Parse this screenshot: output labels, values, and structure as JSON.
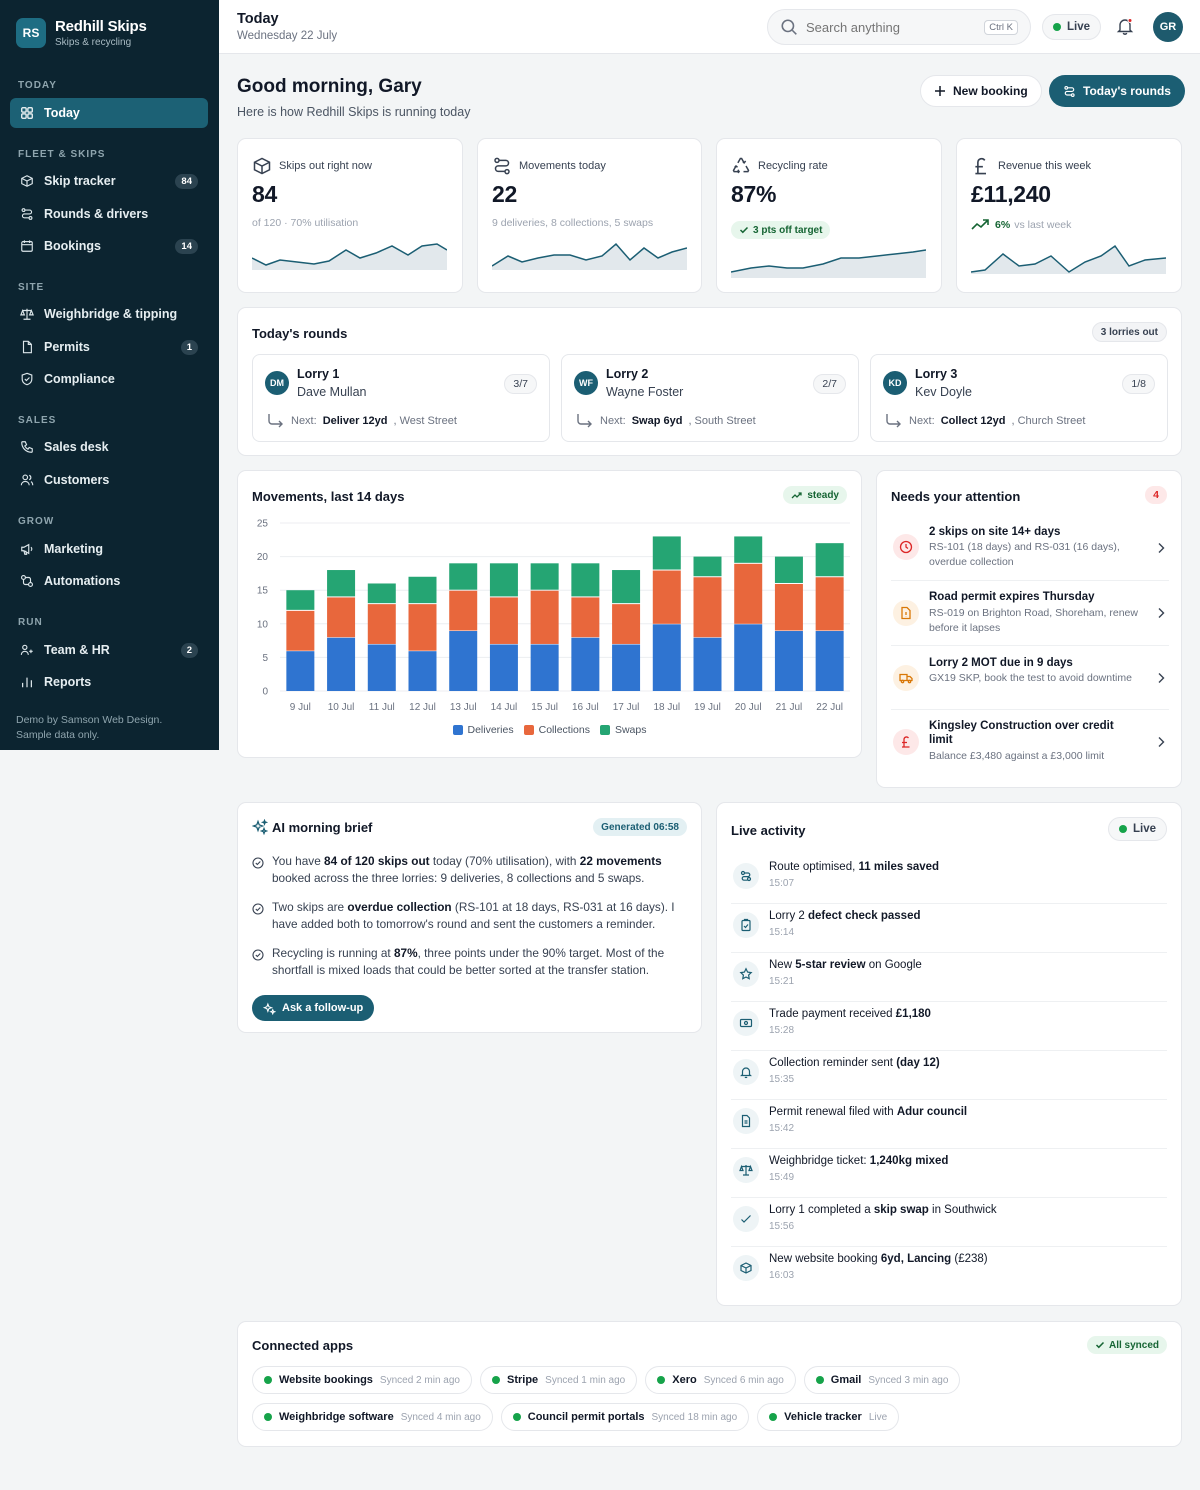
{
  "brand": {
    "initials": "RS",
    "name": "Redhill Skips",
    "sub": "Skips & recycling"
  },
  "sidebar": {
    "sections": [
      {
        "title": "TODAY",
        "items": [
          {
            "label": "Today",
            "icon": "grid-icon",
            "active": true
          }
        ]
      },
      {
        "title": "FLEET & SKIPS",
        "items": [
          {
            "label": "Skip tracker",
            "icon": "box-icon",
            "count": "84"
          },
          {
            "label": "Rounds & drivers",
            "icon": "route-icon"
          },
          {
            "label": "Bookings",
            "icon": "calendar-icon",
            "count": "14"
          }
        ]
      },
      {
        "title": "SITE",
        "items": [
          {
            "label": "Weighbridge & tipping",
            "icon": "scale-icon"
          },
          {
            "label": "Permits",
            "icon": "document-icon",
            "count": "1"
          },
          {
            "label": "Compliance",
            "icon": "shield-icon"
          }
        ]
      },
      {
        "title": "SALES",
        "items": [
          {
            "label": "Sales desk",
            "icon": "phone-icon"
          },
          {
            "label": "Customers",
            "icon": "users-icon"
          }
        ]
      },
      {
        "title": "GROW",
        "items": [
          {
            "label": "Marketing",
            "icon": "megaphone-icon"
          },
          {
            "label": "Automations",
            "icon": "automation-icon"
          }
        ]
      },
      {
        "title": "RUN",
        "items": [
          {
            "label": "Team & HR",
            "icon": "team-icon",
            "count": "2"
          },
          {
            "label": "Reports",
            "icon": "bar-chart-icon"
          }
        ]
      }
    ],
    "footer_line1": "Demo by Samson Web Design.",
    "footer_line2": "Sample data only."
  },
  "topbar": {
    "title": "Today",
    "date": "Wednesday 22 July",
    "search_placeholder": "Search anything",
    "shortcut": "Ctrl K",
    "live_label": "Live",
    "avatar": "GR"
  },
  "greeting": {
    "title": "Good morning, Gary",
    "subtitle": "Here is how Redhill Skips is running today",
    "new_booking": "New booking",
    "todays_rounds": "Today's rounds"
  },
  "kpis": [
    {
      "label": "Skips out right now",
      "value": "84",
      "sub": "of 120 · 70% utilisation",
      "icon": "box-icon"
    },
    {
      "label": "Movements today",
      "value": "22",
      "sub": "9 deliveries, 8 collections, 5 swaps",
      "icon": "route-icon"
    },
    {
      "label": "Recycling rate",
      "value": "87%",
      "badge": "3 pts off target",
      "icon": "recycle-icon"
    },
    {
      "label": "Revenue this week",
      "value": "£11,240",
      "trend_value": "6%",
      "trend_label": "vs last week",
      "icon": "pound-icon"
    }
  ],
  "rounds": {
    "title": "Today's rounds",
    "badge": "3 lorries out",
    "lorries": [
      {
        "initials": "DM",
        "name": "Lorry 1",
        "driver": "Dave Mullan",
        "progress": "3/7",
        "next_label": "Next:",
        "next_job": "Deliver 12yd",
        "next_place": ", West Street"
      },
      {
        "initials": "WF",
        "name": "Lorry 2",
        "driver": "Wayne Foster",
        "progress": "2/7",
        "next_label": "Next:",
        "next_job": "Swap 6yd",
        "next_place": ", South Street"
      },
      {
        "initials": "KD",
        "name": "Lorry 3",
        "driver": "Kev Doyle",
        "progress": "1/8",
        "next_label": "Next:",
        "next_job": "Collect 12yd",
        "next_place": ", Church Street"
      }
    ]
  },
  "movements": {
    "title": "Movements, last 14 days",
    "badge": "steady"
  },
  "chart_data": {
    "type": "bar",
    "stacked": true,
    "categories": [
      "9 Jul",
      "10 Jul",
      "11 Jul",
      "12 Jul",
      "13 Jul",
      "14 Jul",
      "15 Jul",
      "16 Jul",
      "17 Jul",
      "18 Jul",
      "19 Jul",
      "20 Jul",
      "21 Jul",
      "22 Jul"
    ],
    "series": [
      {
        "name": "Deliveries",
        "color": "#2f74d0",
        "values": [
          6,
          8,
          7,
          6,
          9,
          7,
          7,
          8,
          7,
          10,
          8,
          10,
          9,
          9
        ]
      },
      {
        "name": "Collections",
        "color": "#e8673c",
        "values": [
          6,
          6,
          6,
          7,
          6,
          7,
          8,
          6,
          6,
          8,
          9,
          9,
          7,
          8
        ]
      },
      {
        "name": "Swaps",
        "color": "#25a573",
        "values": [
          3,
          4,
          3,
          4,
          4,
          5,
          4,
          5,
          5,
          5,
          3,
          4,
          4,
          5
        ]
      }
    ],
    "yticks": [
      "0",
      "5",
      "10",
      "15",
      "20",
      "25"
    ],
    "ylim": [
      0,
      25
    ],
    "grid": true,
    "legend": "bottom"
  },
  "attention": {
    "title": "Needs your attention",
    "count": "4",
    "items": [
      {
        "title": "2 skips on site 14+ days",
        "desc": "RS-101 (18 days) and RS-031 (16 days), overdue collection",
        "icon": "clock-icon"
      },
      {
        "title": "Road permit expires Thursday",
        "desc": "RS-019 on Brighton Road, Shoreham, renew before it lapses",
        "icon": "permit-icon"
      },
      {
        "title": "Lorry 2 MOT due in 9 days",
        "desc": "GX19 SKP, book the test to avoid downtime",
        "icon": "truck-icon"
      },
      {
        "title": "Kingsley Construction over credit limit",
        "desc": "Balance £3,480 against a £3,000 limit",
        "icon": "pound-icon"
      }
    ]
  },
  "brief": {
    "title": "AI morning brief",
    "badge": "Generated 06:58",
    "ask": "Ask a follow-up",
    "p1": {
      "a": "You have ",
      "b": "84 of 120 skips out",
      "c": " today (70% utilisation), with ",
      "d": "22 movements",
      "e": " booked across the three lorries: 9 deliveries, 8 collections and 5 swaps."
    },
    "p2": {
      "a": "Two skips are ",
      "b": "overdue collection",
      "c": " (RS-101 at 18 days, RS-031 at 16 days). I have added both to tomorrow's round and sent the customers a reminder."
    },
    "p3": {
      "a": "Recycling is running at ",
      "b": "87%",
      "c": ", three points under the 90% target. Most of the shortfall is mixed loads that could be better sorted at the transfer station."
    }
  },
  "activity": {
    "title": "Live activity",
    "live": "Live",
    "items": [
      {
        "pre": "Route optimised, ",
        "bold": "11 miles saved",
        "post": "",
        "time": "15:07",
        "icon": "route-icon"
      },
      {
        "pre": "Lorry 2 ",
        "bold": "defect check passed",
        "post": "",
        "time": "15:14",
        "icon": "clipboard-icon"
      },
      {
        "pre": "New ",
        "bold": "5-star review",
        "post": " on Google",
        "time": "15:21",
        "icon": "star-icon"
      },
      {
        "pre": "Trade payment received ",
        "bold": "£1,180",
        "post": "",
        "time": "15:28",
        "icon": "cash-icon"
      },
      {
        "pre": "Collection reminder sent ",
        "bold": "(day 12)",
        "post": "",
        "time": "15:35",
        "icon": "bell-icon"
      },
      {
        "pre": "Permit renewal filed with ",
        "bold": "Adur council",
        "post": "",
        "time": "15:42",
        "icon": "document-icon"
      },
      {
        "pre": "Weighbridge ticket: ",
        "bold": "1,240kg mixed",
        "post": "",
        "time": "15:49",
        "icon": "scale-icon"
      },
      {
        "pre": "Lorry 1 completed a ",
        "bold": "skip swap",
        "post": " in Southwick",
        "time": "15:56",
        "icon": "check-icon"
      },
      {
        "pre": "New website booking ",
        "bold": "6yd, Lancing",
        "post": " (£238)",
        "time": "16:03",
        "icon": "box-icon"
      }
    ]
  },
  "apps": {
    "title": "Connected apps",
    "badge": "All synced",
    "row1": [
      {
        "name": "Website bookings",
        "status": "Synced 2 min ago"
      },
      {
        "name": "Stripe",
        "status": "Synced 1 min ago"
      },
      {
        "name": "Xero",
        "status": "Synced 6 min ago"
      },
      {
        "name": "Gmail",
        "status": "Synced 3 min ago"
      }
    ],
    "row2": [
      {
        "name": "Weighbridge software",
        "status": "Synced 4 min ago"
      },
      {
        "name": "Council permit portals",
        "status": "Synced 18 min ago"
      },
      {
        "name": "Vehicle tracker",
        "status": "Live"
      }
    ]
  },
  "colors": {
    "sidebar": "#0c2430",
    "accent": "#1b5e73",
    "live": "#16a34a",
    "danger": "#dc2626",
    "warning": "#d97706"
  }
}
